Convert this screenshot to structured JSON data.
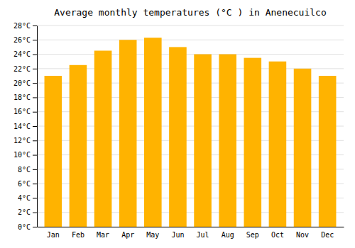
{
  "chart_data": {
    "type": "bar",
    "title": "Average monthly temperatures (°C ) in Anenecuilco",
    "categories": [
      "Jan",
      "Feb",
      "Mar",
      "Apr",
      "May",
      "Jun",
      "Jul",
      "Aug",
      "Sep",
      "Oct",
      "Nov",
      "Dec"
    ],
    "values": [
      21.0,
      22.5,
      24.5,
      26.0,
      26.3,
      25.0,
      24.0,
      24.0,
      23.5,
      23.0,
      22.0,
      21.0
    ],
    "color": "#FFB300",
    "ylim": [
      0,
      28
    ],
    "yticks": [
      {
        "value": 0,
        "label": "0°C"
      },
      {
        "value": 2,
        "label": "2°C"
      },
      {
        "value": 4,
        "label": "4°C"
      },
      {
        "value": 6,
        "label": "6°C"
      },
      {
        "value": 8,
        "label": "8°C"
      },
      {
        "value": 10,
        "label": "10°C"
      },
      {
        "value": 12,
        "label": "12°C"
      },
      {
        "value": 14,
        "label": "14°C"
      },
      {
        "value": 16,
        "label": "16°C"
      },
      {
        "value": 18,
        "label": "18°C"
      },
      {
        "value": 20,
        "label": "20°C"
      },
      {
        "value": 22,
        "label": "22°C"
      },
      {
        "value": 24,
        "label": "24°C"
      },
      {
        "value": 26,
        "label": "26°C"
      },
      {
        "value": 28,
        "label": "28°C"
      }
    ],
    "grid": true
  }
}
